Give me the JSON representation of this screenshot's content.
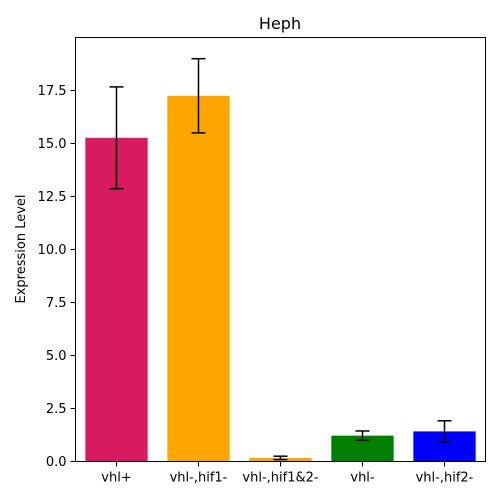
{
  "chart_data": {
    "type": "bar",
    "title": "Heph",
    "xlabel": "",
    "ylabel": "Expression Level",
    "categories": [
      "vhl+",
      "vhl-,hif1-",
      "vhl-,hif1&2-",
      "vhl-",
      "vhl-,hif2-"
    ],
    "values": [
      15.27,
      17.25,
      0.17,
      1.22,
      1.42
    ],
    "errors": [
      2.4,
      1.75,
      0.08,
      0.22,
      0.5
    ],
    "colors": [
      "#d81b60",
      "#ffa500",
      "#ffa500",
      "#008000",
      "#0000ff"
    ],
    "ylim": [
      0,
      20.0
    ],
    "yticks": [
      0.0,
      2.5,
      5.0,
      7.5,
      10.0,
      12.5,
      15.0,
      17.5
    ],
    "ytick_labels": [
      "0.0",
      "2.5",
      "5.0",
      "7.5",
      "10.0",
      "12.5",
      "15.0",
      "17.5"
    ],
    "grid": false,
    "legend": "none"
  }
}
